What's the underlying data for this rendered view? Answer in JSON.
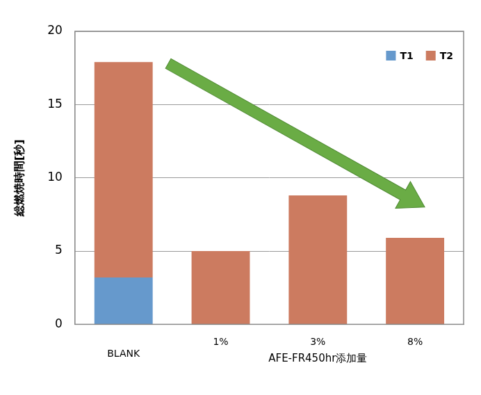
{
  "chart_data": {
    "type": "bar",
    "y_label": "総燃焼時間[秒]",
    "categories": [
      "BLANK",
      "1%",
      "3%",
      "8%"
    ],
    "x_group": {
      "label": "AFE-FR450hr添加量",
      "categories": [
        "1%",
        "3%",
        "8%"
      ]
    },
    "series": [
      {
        "name": "T1",
        "color": "#6699cc",
        "values": [
          3.2,
          null,
          null,
          null
        ]
      },
      {
        "name": "T2",
        "color": "#cc7b60",
        "values": [
          14.7,
          5.0,
          8.8,
          5.9
        ]
      }
    ],
    "stacked": true,
    "ylim": [
      0,
      20
    ],
    "yticks": [
      0,
      5,
      10,
      15,
      20
    ],
    "grid": true,
    "legend": "upper right"
  }
}
